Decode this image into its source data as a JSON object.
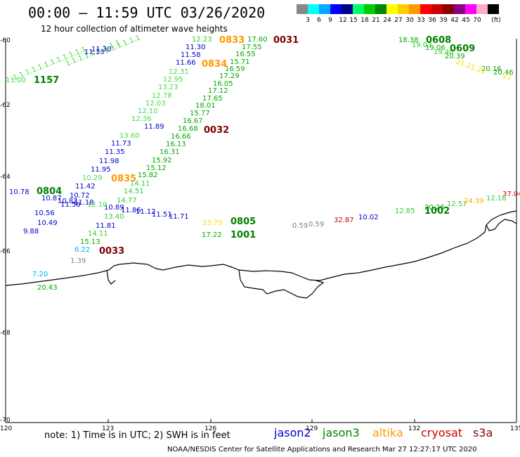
{
  "header": {
    "title": "00:00 – 11:59 UTC 03/26/2020",
    "subtitle": "12 hour collection of altimeter wave heights"
  },
  "colorbar": {
    "unit": "(ft)",
    "colors": [
      "#808080",
      "#00ffff",
      "#00b4ff",
      "#0000ff",
      "#006400",
      "#00e000",
      "#00a000",
      "#00ffff",
      "#ffff00",
      "#ffd700",
      "#ffa500",
      "#ff4500",
      "#ff0000",
      "#cc0000",
      "#8b0000",
      "#8b008b",
      "#ff00ff",
      "#ffc0cb",
      "#000000"
    ],
    "labels": [
      "3",
      "6",
      "9",
      "12",
      "15",
      "18",
      "21",
      "24",
      "27",
      "30",
      "33",
      "36",
      "39",
      "42",
      "45",
      "70"
    ]
  },
  "axes": {
    "lat_labels": [
      "-60",
      "-62",
      "-64",
      "-66",
      "-68",
      "-70"
    ],
    "lon_labels": [
      "120",
      "123",
      "126",
      "129",
      "132",
      "135"
    ]
  },
  "legend": {
    "note": "note:  1) Time is in UTC;  2) SWH is in feet",
    "satellites": [
      {
        "name": "jason2",
        "color": "#0000cc"
      },
      {
        "name": "jason3",
        "color": "#008000"
      },
      {
        "name": "altika",
        "color": "#ff9900"
      },
      {
        "name": "cryosat",
        "color": "#cc0000"
      },
      {
        "name": "s3a",
        "color": "#800000"
      }
    ]
  },
  "footer": {
    "credit": "NOAA/NESDIS Center for Satellite Applications and Research    Mar 27 12:27:17 UTC 2020"
  },
  "times": [
    "0833",
    "0031",
    "0608",
    "0609",
    "0834",
    "0032",
    "0835",
    "0804",
    "0805",
    "1001",
    "1002",
    "0033",
    "1157"
  ],
  "observations": [
    "12.23",
    "17.60",
    "17.55",
    "16.55",
    "15.71",
    "16.59",
    "17.29",
    "16.05",
    "17.12",
    "17.65",
    "18.01",
    "15.77",
    "16.67",
    "16.68",
    "16.66",
    "16.13",
    "16.31",
    "15.92",
    "15.12",
    "15.82",
    "14.11",
    "14.51",
    "14.77",
    "13.40",
    "14.11",
    "15.13",
    "6.22",
    "1.39",
    "7.20",
    "20.43",
    "11.30",
    "11.58",
    "11.66",
    "11.89",
    "11.73",
    "11.35",
    "11.98",
    "11.95",
    "11.42",
    "10.72",
    "11.18",
    "10.89",
    "11.86",
    "11.12",
    "11.51",
    "11.71",
    "11.81",
    "10.56",
    "10.49",
    "9.88",
    "10.78",
    "10.87",
    "10.82",
    "11.58",
    "12.31",
    "12.95",
    "13.23",
    "12.78",
    "12.03",
    "12.10",
    "12.36",
    "13.60",
    "10.29",
    "12.10",
    "23.79",
    "17.22",
    "0.59",
    "0.59",
    "32.87",
    "10.02",
    "12.85",
    "20.26",
    "12.57",
    "24.39",
    "12.16",
    "37.04",
    "18.38",
    "19.03",
    "19.06",
    "19.40",
    "20.39",
    "20.16",
    "20.46",
    "13.00"
  ]
}
